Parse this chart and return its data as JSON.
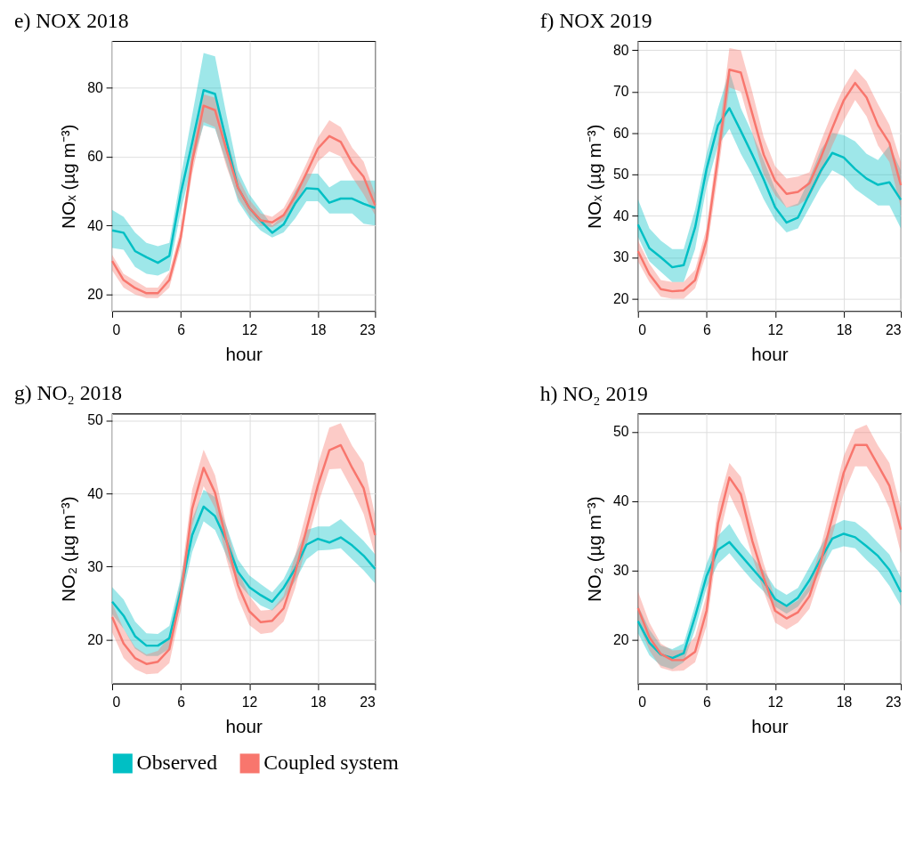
{
  "chart_data": [
    {
      "type": "line",
      "title": "e)  NOX 2018",
      "xlabel": "hour",
      "ylabel": "NOₓ (µg m⁻³)",
      "x": [
        0,
        1,
        2,
        3,
        4,
        5,
        6,
        7,
        8,
        9,
        10,
        11,
        12,
        13,
        14,
        15,
        16,
        17,
        18,
        19,
        20,
        21,
        22,
        23
      ],
      "xlim": [
        0,
        23
      ],
      "xticks": [
        0,
        6,
        12,
        18,
        23
      ],
      "ylim": [
        15.2,
        93.4
      ],
      "yticks": [
        20,
        40,
        60,
        80
      ],
      "grid": true,
      "legend": "bottom",
      "series": [
        {
          "name": "Observed",
          "color": "#00bfc4",
          "values": [
            38.6,
            37.9,
            32.6,
            30.8,
            29.2,
            31.2,
            49.3,
            64,
            79.2,
            78.1,
            64.4,
            51.0,
            45.1,
            41.3,
            37.9,
            40.3,
            46.3,
            50.8,
            50.6,
            46.6,
            47.8,
            47.8,
            46.3,
            45.1
          ],
          "lower": [
            33.5,
            33,
            28,
            26,
            25.5,
            27,
            44,
            58,
            69,
            68,
            58,
            47,
            42,
            38.5,
            36.5,
            38,
            42,
            47,
            47,
            43.5,
            43.5,
            43.5,
            40.5,
            40
          ],
          "upper": [
            44.5,
            42.5,
            38,
            35,
            34,
            35,
            54,
            72,
            90,
            89,
            72,
            56,
            49,
            44.5,
            40,
            43,
            50,
            55,
            55,
            51,
            53,
            53,
            53,
            53
          ]
        },
        {
          "name": "Coupled system",
          "color": "#f8766d",
          "values": [
            29.7,
            24.2,
            21.9,
            20.4,
            20.4,
            24.2,
            36.6,
            58.5,
            74.7,
            73.4,
            61.9,
            51.0,
            45.1,
            41.5,
            40.9,
            43.0,
            48.4,
            55.2,
            62.3,
            65.9,
            64.2,
            58.1,
            54.1,
            45.9
          ],
          "lower": [
            27,
            22,
            20,
            19,
            19,
            22,
            34,
            55,
            70,
            68.5,
            57,
            48,
            43,
            40,
            39.5,
            41.5,
            46,
            52,
            58.5,
            61.5,
            60,
            54,
            49,
            43
          ],
          "upper": [
            31.5,
            26,
            24,
            22,
            22,
            26.5,
            39,
            62,
            78,
            77,
            66,
            54,
            47.5,
            43.5,
            42.5,
            45,
            51,
            58,
            65.5,
            70.5,
            68.5,
            62.5,
            58.5,
            49
          ]
        }
      ]
    },
    {
      "type": "line",
      "title": "f)  NOX 2019",
      "xlabel": "hour",
      "ylabel": "NOₓ (µg m⁻³)",
      "x": [
        0,
        1,
        2,
        3,
        4,
        5,
        6,
        7,
        8,
        9,
        10,
        11,
        12,
        13,
        14,
        15,
        16,
        17,
        18,
        19,
        20,
        21,
        22,
        23
      ],
      "xlim": [
        0,
        23
      ],
      "xticks": [
        0,
        6,
        12,
        18,
        23
      ],
      "ylim": [
        17.0,
        82.2
      ],
      "yticks": [
        20,
        30,
        40,
        50,
        60,
        70,
        80
      ],
      "grid": true,
      "legend": "bottom",
      "series": [
        {
          "name": "Observed",
          "color": "#00bfc4",
          "values": [
            37.9,
            32.2,
            30.0,
            27.6,
            28.1,
            37.2,
            51.3,
            61.9,
            66.0,
            60.5,
            54.8,
            48.8,
            42.1,
            38.4,
            39.6,
            45.3,
            50.9,
            55.2,
            54.1,
            51.3,
            49.0,
            47.5,
            48.1,
            43.9
          ],
          "lower": [
            35,
            29,
            26.5,
            24,
            24,
            32,
            47,
            57,
            61,
            55,
            50,
            44,
            39,
            36,
            37,
            42,
            47,
            51,
            49.5,
            46.5,
            44.5,
            42.5,
            42.5,
            37
          ],
          "upper": [
            44,
            37,
            34,
            32,
            32,
            41.5,
            55,
            66,
            75,
            66,
            60,
            53.5,
            46.5,
            42,
            43,
            49,
            56,
            60,
            59.5,
            58,
            55,
            53.5,
            57,
            51
          ]
        },
        {
          "name": "Coupled system",
          "color": "#f8766d",
          "values": [
            31.5,
            25.9,
            22.3,
            21.8,
            22.0,
            24.5,
            34.3,
            54.1,
            75.3,
            74.6,
            64.7,
            54.8,
            48.5,
            45.3,
            45.8,
            47.9,
            54.1,
            61.2,
            67.9,
            72.1,
            68.6,
            61.9,
            57.6,
            47.4
          ],
          "lower": [
            29,
            24,
            20.5,
            20,
            20,
            22.5,
            31,
            50,
            71,
            70,
            60,
            50,
            45,
            42,
            42.5,
            44.5,
            50,
            57,
            63,
            68,
            64,
            57,
            53,
            42
          ],
          "upper": [
            34,
            28.5,
            24.5,
            24,
            24,
            27,
            37,
            58,
            80.5,
            80,
            70,
            59,
            52,
            49,
            49.5,
            50.5,
            58,
            65,
            71,
            75.5,
            72.5,
            67,
            62,
            53
          ]
        }
      ]
    },
    {
      "type": "line",
      "title": "g)  NO₂ 2018",
      "xlabel": "hour",
      "ylabel": "NO₂ (µg m⁻³)",
      "x": [
        0,
        1,
        2,
        3,
        4,
        5,
        6,
        7,
        8,
        9,
        10,
        11,
        12,
        13,
        14,
        15,
        16,
        17,
        18,
        19,
        20,
        21,
        22,
        23
      ],
      "xlim": [
        0,
        23
      ],
      "xticks": [
        0,
        6,
        12,
        18,
        23
      ],
      "ylim": [
        14.0,
        50.9
      ],
      "yticks": [
        20,
        30,
        40,
        50
      ],
      "grid": true,
      "legend": "bottom",
      "series": [
        {
          "name": "Observed",
          "color": "#00bfc4",
          "values": [
            25.2,
            23.3,
            20.5,
            19.2,
            19.2,
            20.2,
            26.7,
            34.3,
            38.2,
            36.9,
            33.5,
            29.3,
            27.2,
            26.1,
            25.2,
            27.1,
            29.7,
            33.0,
            33.8,
            33.3,
            34.0,
            32.9,
            31.5,
            29.7
          ],
          "lower": [
            23.5,
            21.5,
            18.8,
            17.8,
            17.8,
            18.8,
            25,
            32,
            36.2,
            35,
            31.5,
            27.8,
            26,
            24.7,
            24,
            25.5,
            28,
            31,
            32.2,
            32.3,
            32.5,
            31,
            29.5,
            27.7
          ],
          "upper": [
            27.2,
            25.5,
            22.5,
            20.9,
            20.8,
            21.9,
            28.5,
            36.5,
            40.5,
            39.5,
            35.5,
            31,
            28.8,
            27.6,
            26.5,
            28.3,
            31.5,
            35,
            35.5,
            35.5,
            36.5,
            35,
            33.5,
            31.7
          ]
        },
        {
          "name": "Coupled system",
          "color": "#f8766d",
          "values": [
            23.1,
            19.5,
            17.5,
            16.7,
            17.0,
            18.7,
            25.9,
            37.9,
            43.5,
            40.1,
            33.5,
            27.5,
            23.9,
            22.4,
            22.6,
            24.3,
            29.1,
            35.1,
            41.1,
            45.9,
            46.6,
            43.5,
            40.7,
            34.3
          ],
          "lower": [
            21,
            17.5,
            16,
            15.3,
            15.4,
            16.8,
            24,
            35.5,
            41,
            38,
            31,
            25.7,
            22,
            20.8,
            21,
            22.5,
            27,
            33,
            38.5,
            43.3,
            43.4,
            40.5,
            37.2,
            31.5
          ],
          "upper": [
            25,
            21.5,
            19,
            18,
            18.5,
            20.5,
            28,
            40.5,
            46,
            42.5,
            35.5,
            29.5,
            26,
            24,
            24.1,
            26,
            31.5,
            37.5,
            44,
            49,
            49.6,
            46.5,
            44.2,
            37
          ]
        }
      ]
    },
    {
      "type": "line",
      "title": "h)  NO₂ 2019",
      "xlabel": "hour",
      "ylabel": "NO₂ (µg m⁻³)",
      "x": [
        0,
        1,
        2,
        3,
        4,
        5,
        6,
        7,
        8,
        9,
        10,
        11,
        12,
        13,
        14,
        15,
        16,
        17,
        18,
        19,
        20,
        21,
        22,
        23
      ],
      "xlim": [
        0,
        23
      ],
      "xticks": [
        0,
        6,
        12,
        18,
        23
      ],
      "ylim": [
        13.7,
        52.6
      ],
      "yticks": [
        20,
        30,
        40,
        50
      ],
      "grid": true,
      "legend": "bottom",
      "series": [
        {
          "name": "Observed",
          "color": "#00bfc4",
          "values": [
            22.7,
            19.6,
            17.9,
            17.4,
            18.1,
            23.4,
            29.2,
            33.0,
            34.1,
            32.2,
            30.3,
            28.4,
            25.9,
            24.9,
            26.1,
            28.6,
            31.7,
            34.6,
            35.3,
            34.8,
            33.5,
            32.1,
            30.1,
            26.9
          ],
          "lower": [
            21,
            17.8,
            16.3,
            15.8,
            16.8,
            21.5,
            27.5,
            31,
            32.5,
            30.5,
            28.6,
            27,
            24.8,
            23.8,
            24.8,
            27,
            30,
            33,
            33.5,
            33.2,
            31.5,
            30,
            27.8,
            24.9
          ],
          "upper": [
            25,
            21.5,
            19.2,
            18.7,
            19.5,
            25,
            31,
            35,
            36.7,
            34,
            32,
            30,
            27.5,
            26.5,
            27.5,
            30.5,
            33.5,
            36.5,
            37.3,
            37,
            35.7,
            34,
            32.3,
            29
          ]
        },
        {
          "name": "Coupled system",
          "color": "#f8766d",
          "values": [
            24.6,
            20.4,
            18.0,
            17.1,
            17.1,
            18.3,
            24.2,
            36.8,
            43.4,
            41.0,
            34.3,
            29.0,
            24.2,
            23.1,
            24.0,
            26.3,
            31.3,
            37.6,
            44.1,
            48.1,
            48.1,
            45.2,
            42.2,
            35.9
          ],
          "lower": [
            22.5,
            18.5,
            16,
            15.5,
            15.6,
            16.8,
            22,
            34,
            41,
            37.5,
            32,
            27,
            22.5,
            21.5,
            22.5,
            24.5,
            29.5,
            35,
            41,
            45,
            45,
            42.5,
            39,
            32.5
          ],
          "upper": [
            27,
            22.5,
            19.5,
            18.5,
            18.6,
            20.5,
            26.5,
            39.5,
            45.5,
            43.5,
            37,
            31,
            26,
            24.7,
            25.7,
            28,
            33.5,
            40,
            46.5,
            50.3,
            51,
            48,
            45.5,
            39
          ]
        }
      ]
    }
  ]
}
